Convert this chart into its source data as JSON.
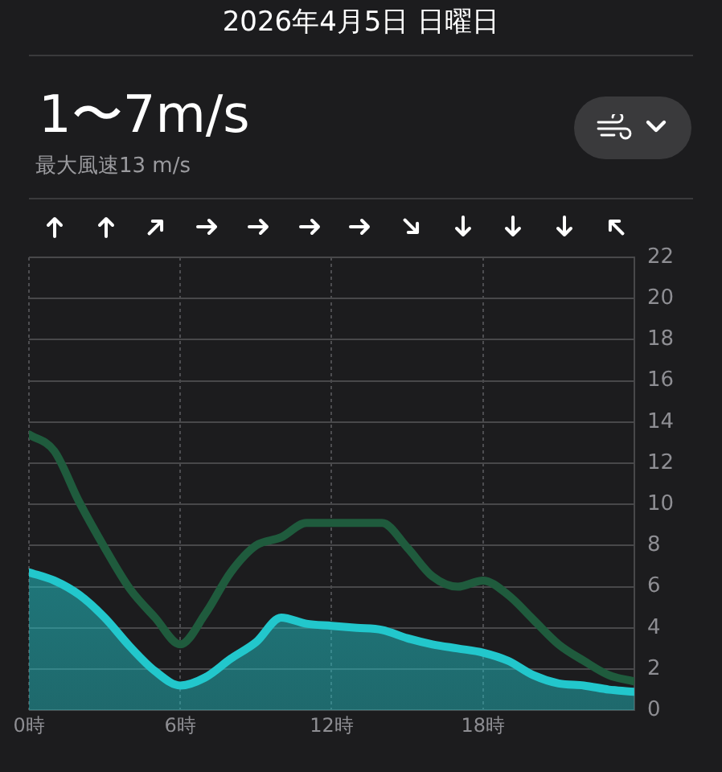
{
  "chart_data": {
    "type": "line",
    "title": "2026年4月5日 日曜日",
    "subtitle": "1〜7m/s",
    "annotations": [
      "最大風速13 m/s"
    ],
    "x": [
      0,
      1,
      2,
      3,
      4,
      5,
      6,
      7,
      8,
      9,
      10,
      11,
      12,
      13,
      14,
      15,
      16,
      17,
      18,
      19,
      20,
      21,
      22,
      23,
      24
    ],
    "series": [
      {
        "color": "#1f5b3d",
        "values": [
          13.4,
          12.6,
          10.1,
          7.9,
          5.9,
          4.5,
          3.2,
          4.7,
          6.7,
          8.0,
          8.4,
          9.1,
          9.1,
          9.1,
          9.1,
          7.9,
          6.5,
          6.0,
          6.3,
          5.6,
          4.4,
          3.2,
          2.4,
          1.7,
          1.4
        ]
      },
      {
        "type": "area",
        "color": "#22c7cc",
        "values": [
          6.7,
          6.3,
          5.6,
          4.5,
          3.1,
          1.9,
          1.2,
          1.6,
          2.5,
          3.3,
          4.5,
          4.2,
          4.1,
          4.0,
          3.9,
          3.5,
          3.2,
          3.0,
          2.8,
          2.4,
          1.7,
          1.3,
          1.2,
          1.0,
          0.9
        ]
      }
    ],
    "xlim": [
      0,
      24
    ],
    "xticks": [
      {
        "value": 0,
        "label": "0時"
      },
      {
        "value": 6,
        "label": "6時"
      },
      {
        "value": 12,
        "label": "12時"
      },
      {
        "value": 18,
        "label": "18時"
      }
    ],
    "ylim": [
      0,
      22
    ],
    "yticks": [
      0,
      2,
      4,
      6,
      8,
      10,
      12,
      14,
      16,
      18,
      20,
      22
    ],
    "grid": true,
    "legend": false,
    "marker": "none",
    "line_style": "solid"
  }
}
